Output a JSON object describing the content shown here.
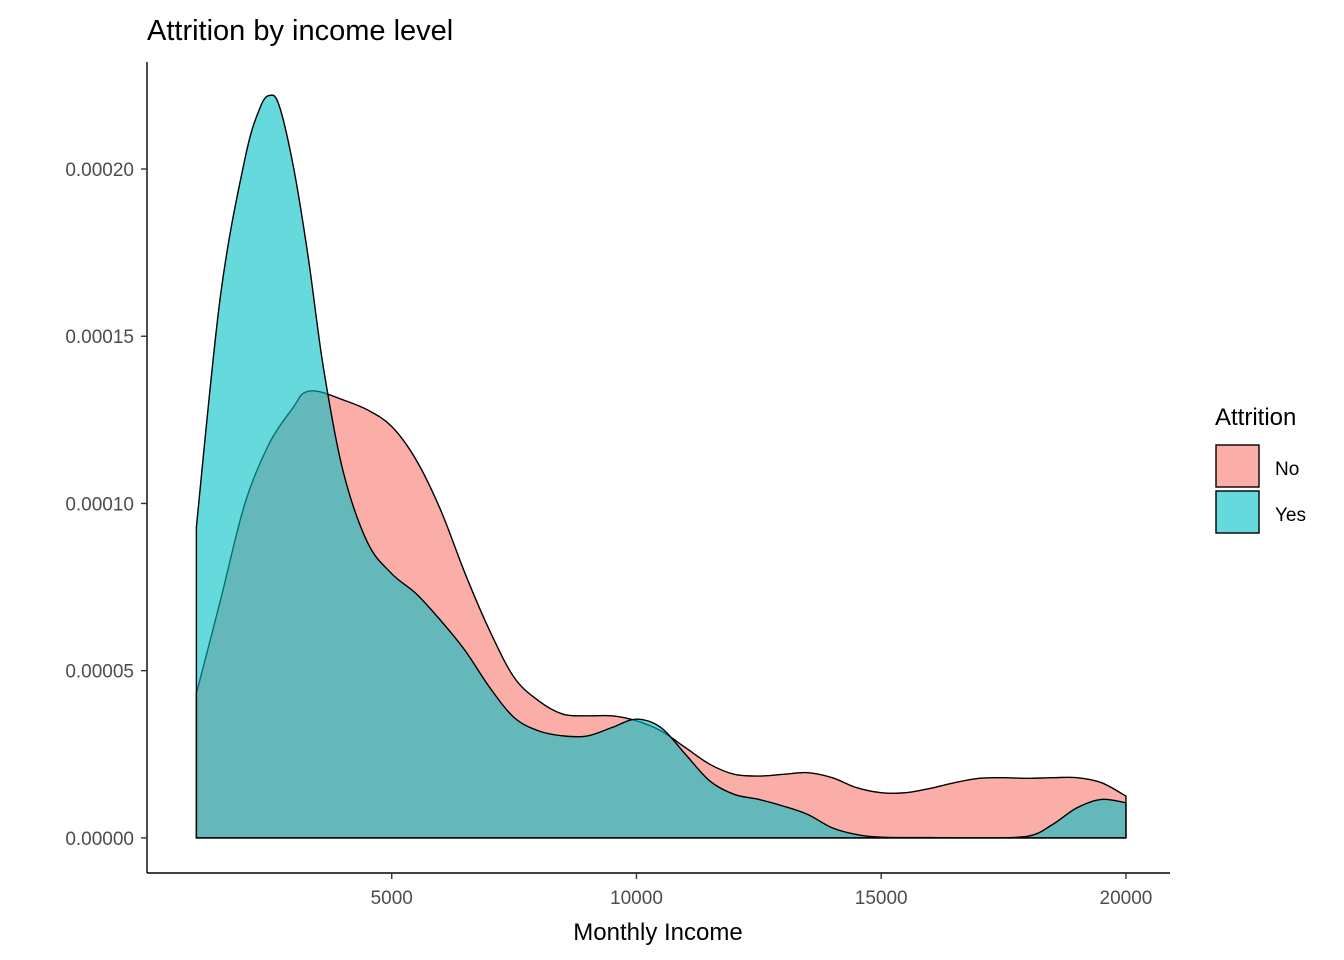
{
  "chart_data": {
    "type": "area",
    "subtype": "density",
    "title": "Attrition by income level",
    "xlabel": "Monthly Income",
    "ylabel": "",
    "xlim": [
      0,
      20900
    ],
    "ylim": [
      -1.05e-05,
      0.000232
    ],
    "xticks": [
      5000,
      10000,
      15000,
      20000
    ],
    "xtick_labels": [
      "5000",
      "10000",
      "15000",
      "20000"
    ],
    "yticks": [
      0,
      5e-05,
      0.0001,
      0.00015,
      0.0002
    ],
    "ytick_labels": [
      "0.00000",
      "0.00005",
      "0.00010",
      "0.00015",
      "0.00020"
    ],
    "grid": false,
    "legend": {
      "title": "Attrition",
      "position": "right"
    },
    "series": [
      {
        "name": "No",
        "color": "#F8766D",
        "opacity": 0.6,
        "points": [
          [
            1009,
            4.32e-05
          ],
          [
            1500,
            7.1e-05
          ],
          [
            2000,
            0.0001
          ],
          [
            2500,
            0.000118
          ],
          [
            3000,
            0.000129
          ],
          [
            3200,
            0.000133
          ],
          [
            3500,
            0.0001335
          ],
          [
            4000,
            0.000131
          ],
          [
            4500,
            0.000128
          ],
          [
            5000,
            0.000123
          ],
          [
            5500,
            0.000113
          ],
          [
            6000,
            9.8e-05
          ],
          [
            6500,
            7.9e-05
          ],
          [
            7000,
            6.2e-05
          ],
          [
            7500,
            4.8e-05
          ],
          [
            8000,
            4.1e-05
          ],
          [
            8500,
            3.7e-05
          ],
          [
            9000,
            3.65e-05
          ],
          [
            9500,
            3.65e-05
          ],
          [
            10000,
            3.5e-05
          ],
          [
            10500,
            3.2e-05
          ],
          [
            11000,
            2.7e-05
          ],
          [
            11500,
            2.2e-05
          ],
          [
            12000,
            1.9e-05
          ],
          [
            12500,
            1.85e-05
          ],
          [
            13000,
            1.9e-05
          ],
          [
            13500,
            1.95e-05
          ],
          [
            14000,
            1.8e-05
          ],
          [
            14500,
            1.5e-05
          ],
          [
            15000,
            1.35e-05
          ],
          [
            15500,
            1.35e-05
          ],
          [
            16000,
            1.48e-05
          ],
          [
            16500,
            1.65e-05
          ],
          [
            17000,
            1.78e-05
          ],
          [
            17500,
            1.8e-05
          ],
          [
            18000,
            1.78e-05
          ],
          [
            18500,
            1.8e-05
          ],
          [
            19000,
            1.8e-05
          ],
          [
            19500,
            1.65e-05
          ],
          [
            20000,
            1.25e-05
          ]
        ]
      },
      {
        "name": "Yes",
        "color": "#00BFC4",
        "opacity": 0.6,
        "points": [
          [
            1009,
            9.3e-05
          ],
          [
            1500,
            0.000162
          ],
          [
            2000,
            0.000203
          ],
          [
            2300,
            0.000218
          ],
          [
            2500,
            0.000222
          ],
          [
            2700,
            0.000219
          ],
          [
            3000,
            0.0002
          ],
          [
            3300,
            0.000173
          ],
          [
            3600,
            0.000141
          ],
          [
            4000,
            0.00011
          ],
          [
            4500,
            8.85e-05
          ],
          [
            5000,
            7.9e-05
          ],
          [
            5500,
            7.3e-05
          ],
          [
            6000,
            6.5e-05
          ],
          [
            6500,
            5.6e-05
          ],
          [
            7000,
            4.5e-05
          ],
          [
            7500,
            3.6e-05
          ],
          [
            8000,
            3.2e-05
          ],
          [
            8500,
            3.05e-05
          ],
          [
            9000,
            3.05e-05
          ],
          [
            9500,
            3.3e-05
          ],
          [
            10000,
            3.55e-05
          ],
          [
            10500,
            3.3e-05
          ],
          [
            11000,
            2.5e-05
          ],
          [
            11500,
            1.7e-05
          ],
          [
            12000,
            1.3e-05
          ],
          [
            12500,
            1.15e-05
          ],
          [
            13000,
            9.5e-06
          ],
          [
            13500,
            7e-06
          ],
          [
            14000,
            3e-06
          ],
          [
            14500,
            1e-06
          ],
          [
            15000,
            2e-07
          ],
          [
            16000,
            1e-07
          ],
          [
            17000,
            0
          ],
          [
            18000,
            5e-07
          ],
          [
            18500,
            4e-06
          ],
          [
            19000,
            9e-06
          ],
          [
            19500,
            1.15e-05
          ],
          [
            20000,
            1.05e-05
          ]
        ]
      }
    ]
  }
}
